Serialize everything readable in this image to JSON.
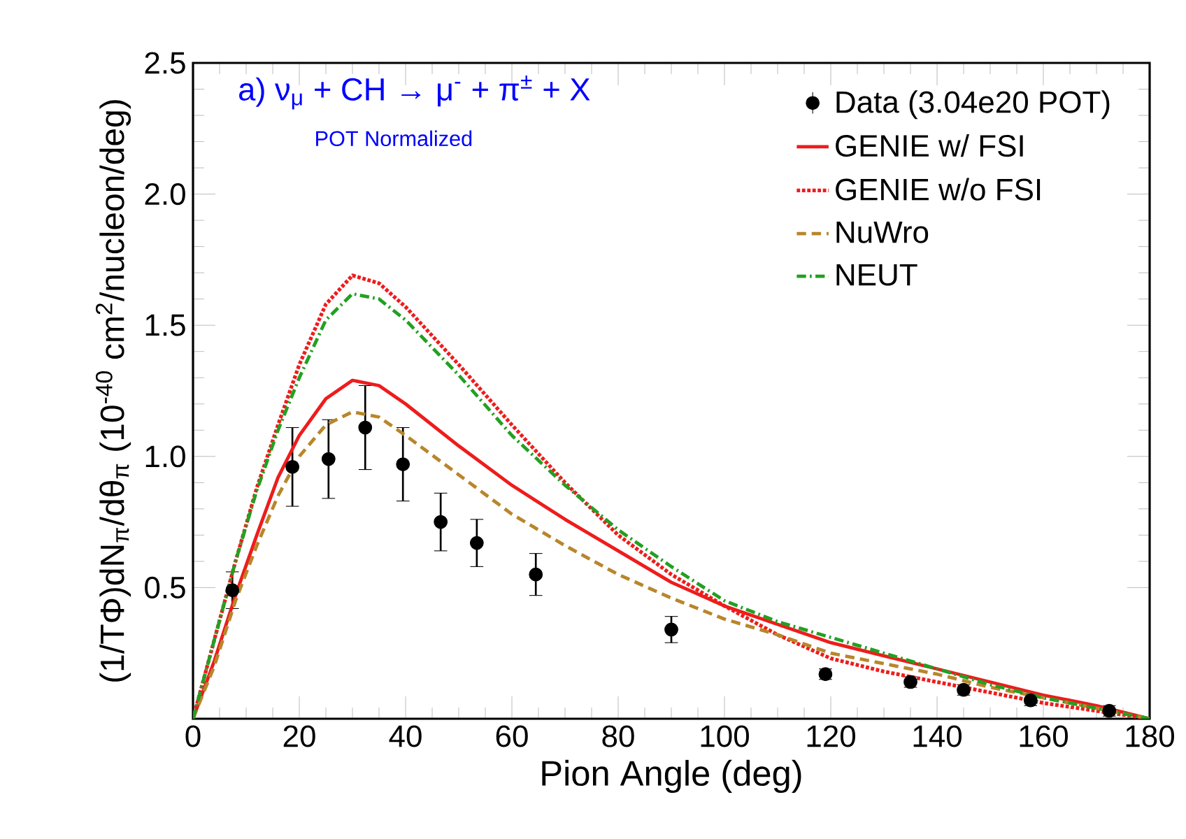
{
  "chart_data": {
    "type": "line",
    "xlabel": "Pion Angle (deg)",
    "ylabel": "(1/TΦ)dN$_{π}$/dθ$_{π}$ (10$^{-40}$ cm$^{2}$/nucleon/deg)",
    "annotations": [
      "a)  ν$_{μ}$ + CH → μ$^{-}$ + π$^{±}$ + X",
      "POT Normalized"
    ],
    "xlim": [
      0,
      180
    ],
    "ylim": [
      0,
      2.5
    ],
    "xticks": [
      0,
      20,
      40,
      60,
      80,
      100,
      120,
      140,
      160,
      180
    ],
    "yticks": [
      {
        "value": 0.5,
        "label": "0.5"
      },
      {
        "value": 1.0,
        "label": "1.0"
      },
      {
        "value": 1.5,
        "label": "1.5"
      },
      {
        "value": 2.0,
        "label": "2.0"
      },
      {
        "value": 2.5,
        "label": "2.5"
      }
    ],
    "legend": "top right",
    "grid": false,
    "series": [
      {
        "name": "Data (3.04e20 POT)",
        "type": "scatter",
        "marker": "circle",
        "color": "#000000",
        "x": [
          7.4,
          18.7,
          25.5,
          32.4,
          39.5,
          46.6,
          53.4,
          64.5,
          90,
          119,
          135,
          145,
          157.6,
          172.4
        ],
        "values": [
          0.49,
          0.96,
          0.99,
          1.11,
          0.97,
          0.75,
          0.67,
          0.55,
          0.34,
          0.17,
          0.14,
          0.11,
          0.07,
          0.03
        ],
        "errors": [
          0.07,
          0.15,
          0.15,
          0.16,
          0.14,
          0.11,
          0.09,
          0.08,
          0.05,
          0.02,
          0.02,
          0.02,
          0.02,
          0.02
        ]
      },
      {
        "name": "GENIE w/ FSI",
        "line_style": "solid",
        "color": "#ee1c1c",
        "x": [
          0,
          4,
          8,
          12,
          16,
          20,
          25,
          30,
          35,
          40,
          50,
          60,
          70,
          80,
          90,
          100,
          110,
          120,
          130,
          140,
          150,
          160,
          170,
          180
        ],
        "values": [
          0,
          0.22,
          0.47,
          0.7,
          0.92,
          1.08,
          1.22,
          1.29,
          1.27,
          1.2,
          1.04,
          0.89,
          0.76,
          0.64,
          0.52,
          0.43,
          0.36,
          0.29,
          0.24,
          0.19,
          0.14,
          0.09,
          0.05,
          0
        ]
      },
      {
        "name": "GENIE w/o FSI",
        "line_style": "dotted",
        "color": "#ee1c1c",
        "x": [
          0,
          4,
          8,
          12,
          16,
          20,
          25,
          30,
          35,
          40,
          50,
          60,
          70,
          80,
          90,
          100,
          110,
          120,
          130,
          140,
          150,
          160,
          170,
          180
        ],
        "values": [
          0,
          0.3,
          0.6,
          0.88,
          1.12,
          1.35,
          1.58,
          1.69,
          1.66,
          1.57,
          1.35,
          1.12,
          0.9,
          0.7,
          0.55,
          0.43,
          0.32,
          0.23,
          0.18,
          0.14,
          0.1,
          0.06,
          0.03,
          0
        ]
      },
      {
        "name": "NuWro",
        "line_style": "dashed",
        "color": "#b8862b",
        "x": [
          0,
          4,
          8,
          12,
          16,
          20,
          25,
          30,
          35,
          40,
          50,
          60,
          70,
          80,
          90,
          100,
          110,
          120,
          130,
          140,
          150,
          160,
          170,
          180
        ],
        "values": [
          0,
          0.2,
          0.45,
          0.66,
          0.85,
          1.0,
          1.12,
          1.17,
          1.15,
          1.08,
          0.93,
          0.78,
          0.66,
          0.55,
          0.46,
          0.38,
          0.32,
          0.25,
          0.21,
          0.17,
          0.12,
          0.08,
          0.04,
          0
        ]
      },
      {
        "name": "NEUT",
        "line_style": "dashdot",
        "color": "#22a022",
        "x": [
          0,
          4,
          8,
          12,
          16,
          20,
          25,
          30,
          35,
          40,
          50,
          60,
          70,
          80,
          90,
          100,
          110,
          120,
          130,
          140,
          150,
          160,
          170,
          180
        ],
        "values": [
          0,
          0.3,
          0.6,
          0.87,
          1.1,
          1.3,
          1.52,
          1.62,
          1.6,
          1.52,
          1.31,
          1.08,
          0.89,
          0.72,
          0.58,
          0.45,
          0.37,
          0.31,
          0.25,
          0.19,
          0.13,
          0.08,
          0.04,
          0
        ]
      }
    ]
  }
}
